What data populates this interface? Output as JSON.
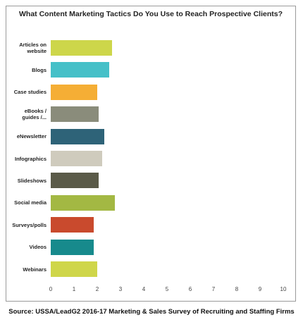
{
  "chart_data": {
    "type": "bar",
    "orientation": "horizontal",
    "title": "What Content Marketing Tactics Do You Use to Reach Prospective Clients?",
    "categories": [
      "Articles on website",
      "Blogs",
      "Case studies",
      "eBooks / guides /...",
      "eNewsletter",
      "Infographics",
      "Slideshows",
      "Social media",
      "Surveys/polls",
      "Videos",
      "Webinars"
    ],
    "values": [
      2.65,
      2.5,
      2.0,
      2.05,
      2.3,
      2.2,
      2.05,
      2.75,
      1.85,
      1.85,
      2.0
    ],
    "colors": [
      "#cdd64a",
      "#45c0c8",
      "#f5ae35",
      "#8a8c7b",
      "#2e6378",
      "#cfcbbd",
      "#5a5a48",
      "#a3b843",
      "#c94a2d",
      "#178a8c",
      "#cfd64a"
    ],
    "xlim": [
      0,
      10
    ],
    "xticks": [
      0,
      1,
      2,
      3,
      4,
      5,
      6,
      7,
      8,
      9,
      10
    ],
    "grid": false,
    "source": "Source: USSA/LeadG2 2016-17 Marketing & Sales Survey of Recruiting and Staffing Firms"
  }
}
